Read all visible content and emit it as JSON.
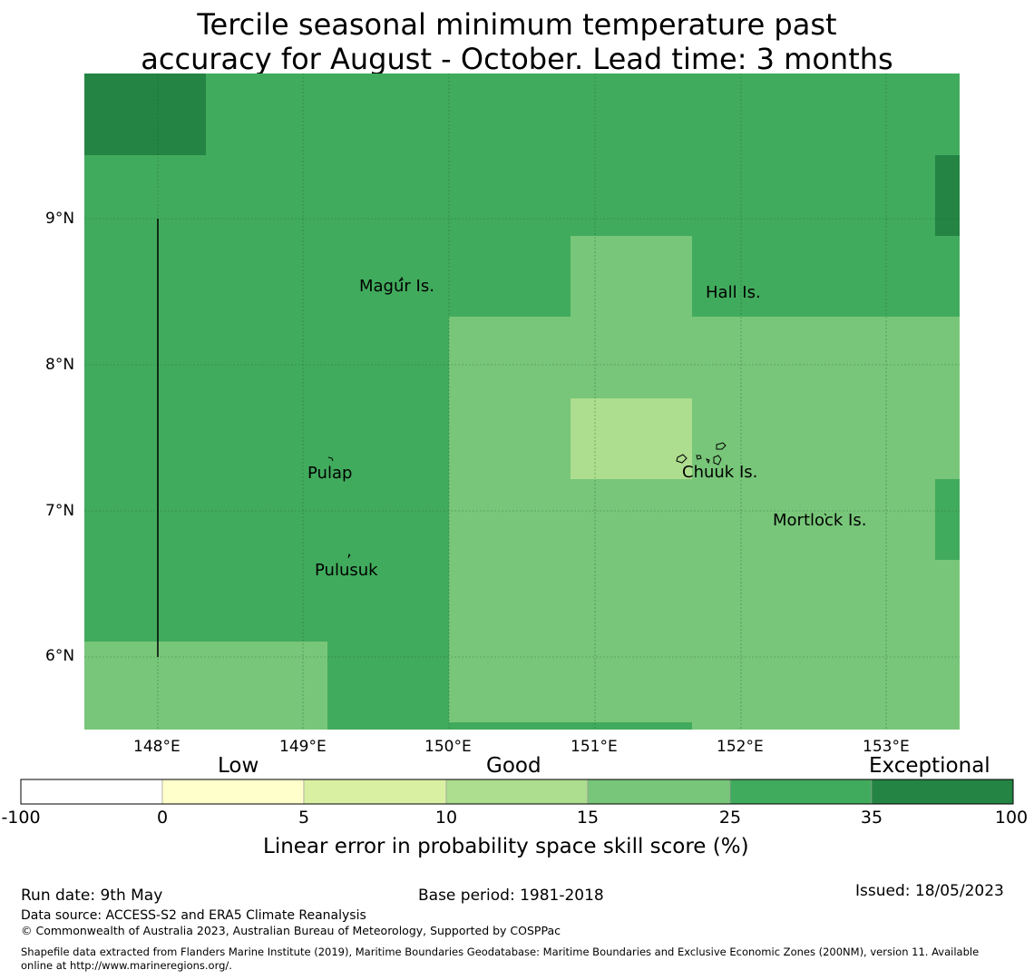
{
  "title_line1": "Tercile seasonal minimum temperature past",
  "title_line2": "accuracy for August - October. Lead time: 3 months",
  "map": {
    "lon_ticks": [
      "148°E",
      "149°E",
      "150°E",
      "151°E",
      "152°E",
      "153°E"
    ],
    "lat_ticks": [
      "9°N",
      "8°N",
      "7°N",
      "6°N"
    ],
    "places": [
      {
        "name": "Magur Is."
      },
      {
        "name": "Hall Is."
      },
      {
        "name": "Pulap"
      },
      {
        "name": "Chuuk Is."
      },
      {
        "name": "Mortlock Is."
      },
      {
        "name": "Pulusuk"
      }
    ],
    "colors": {
      "band_0_5": "#ffffcc",
      "band_5_10": "#d9f0a3",
      "band_10_15": "#addd8e",
      "band_15_25": "#78c679",
      "band_25_35": "#41ab5d",
      "band_35_100": "#238443"
    }
  },
  "colorbar": {
    "categories": [
      "Low",
      "Good",
      "Exceptional"
    ],
    "ticks": [
      "-100",
      "0",
      "5",
      "10",
      "15",
      "25",
      "35",
      "100"
    ],
    "title": "Linear error in probability space skill score (%)"
  },
  "footer": {
    "run_date": "Run date: 9th May",
    "base_period": "Base period: 1981-2018",
    "issued": "Issued: 18/05/2023",
    "data_source": "Data source: ACCESS-S2 and ERA5 Climate Reanalysis",
    "copyright": "© Commonwealth of Australia 2023, Australian Bureau of Meteorology, Supported by COSPPac",
    "shapefile_line1": "Shapefile data extracted from Flanders Marine Institute (2019), Maritime Boundaries Geodatabase: Maritime Boundaries and Exclusive Economic Zones (200NM), version 11. Available",
    "shapefile_line2": "online at http://www.marineregions.org/."
  }
}
